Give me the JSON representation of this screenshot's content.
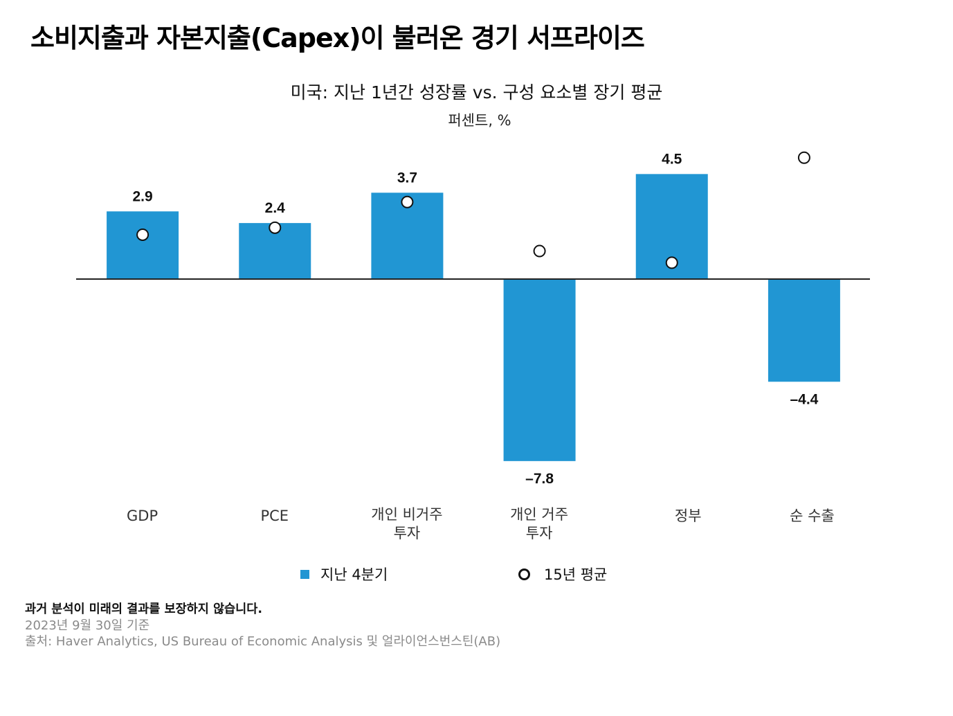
{
  "headline": "소비지출과 자본지출(Capex)이 불러온 경기 서프라이즈",
  "chart_data": {
    "type": "bar",
    "title": "미국: 지난 1년간 성장률 vs. 구성 요소별 장기 평균",
    "subtitle": "퍼센트, %",
    "categories": [
      [
        "GDP"
      ],
      [
        "PCE"
      ],
      [
        "개인 비거주",
        "투자"
      ],
      [
        "개인 거주",
        "투자"
      ],
      [
        "정부"
      ],
      [
        "순 수출"
      ]
    ],
    "series": [
      {
        "name": "지난 4분기",
        "kind": "bar",
        "color": "#2196d3",
        "values": [
          2.9,
          2.4,
          3.7,
          -7.8,
          4.5,
          -4.4
        ],
        "value_labels": [
          "2.9",
          "2.4",
          "3.7",
          "–7.8",
          "4.5",
          "–4.4"
        ]
      },
      {
        "name": "15년 평균",
        "kind": "marker",
        "marker": "open-circle",
        "values": [
          1.9,
          2.2,
          3.3,
          1.2,
          0.7,
          5.2
        ]
      }
    ],
    "ylim": [
      -9.5,
      6
    ],
    "grid": false,
    "zero_line": true,
    "legend_position": "bottom"
  },
  "legend": {
    "bar_label": "지난 4분기",
    "marker_label": "15년 평균"
  },
  "footer": {
    "disclaimer": "과거 분석이 미래의 결과를 보장하지 않습니다.",
    "date": "2023년 9월 30일 기준",
    "source": "출처: Haver Analytics, US Bureau of Economic Analysis 및 얼라이언스번스틴(AB)"
  }
}
